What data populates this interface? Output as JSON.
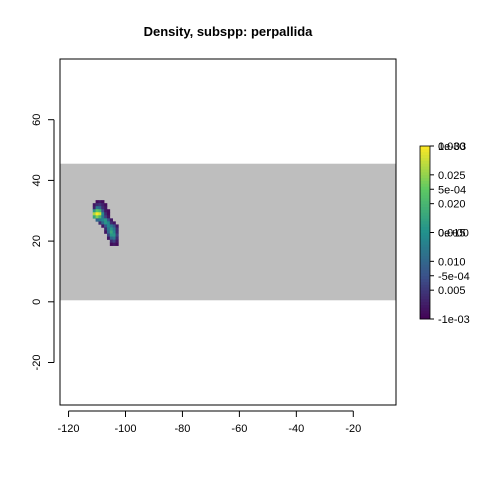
{
  "chart_data": {
    "type": "heatmap",
    "title": "Density, subspp: perpallida",
    "xlabel": "",
    "ylabel": "",
    "xlim": [
      -123,
      -5
    ],
    "ylim": [
      -34,
      80
    ],
    "x_ticks": [
      -120,
      -100,
      -80,
      -60,
      -40,
      -20
    ],
    "y_ticks": [
      -20,
      0,
      20,
      40,
      60
    ],
    "grid": false,
    "background_band": {
      "x": [
        -123,
        -5
      ],
      "y": [
        0.5,
        45.5
      ],
      "color": "#bebebe"
    },
    "colorscale": {
      "type": "viridis",
      "range": [
        0,
        0.03
      ],
      "stops": [
        "#440154",
        "#3b528b",
        "#21908d",
        "#5dc863",
        "#fde725"
      ],
      "ticks": [
        0.005,
        0.01,
        0.015,
        0.02,
        0.025,
        0.03
      ],
      "tick_labels": [
        "0.005",
        "0.010",
        "0.015",
        "0.020",
        "0.025",
        "0.030"
      ],
      "overlay_ticks": [
        -0.001,
        -0.0005,
        0,
        0.0005,
        0.001
      ],
      "overlay_tick_labels": [
        "-1e-03",
        "-5e-04",
        "0e+00",
        "5e-04",
        "1e-03"
      ]
    },
    "cells": [
      {
        "x": -110,
        "y": 33,
        "v": 0.001
      },
      {
        "x": -109,
        "y": 33,
        "v": 0.002
      },
      {
        "x": -108,
        "y": 33,
        "v": 0.001
      },
      {
        "x": -111,
        "y": 32,
        "v": 0.002
      },
      {
        "x": -110,
        "y": 32,
        "v": 0.004
      },
      {
        "x": -109,
        "y": 32,
        "v": 0.005
      },
      {
        "x": -108,
        "y": 32,
        "v": 0.003
      },
      {
        "x": -107,
        "y": 32,
        "v": 0.001
      },
      {
        "x": -111,
        "y": 31,
        "v": 0.003
      },
      {
        "x": -110,
        "y": 31,
        "v": 0.012
      },
      {
        "x": -109,
        "y": 31,
        "v": 0.01
      },
      {
        "x": -108,
        "y": 31,
        "v": 0.004
      },
      {
        "x": -107,
        "y": 31,
        "v": 0.002
      },
      {
        "x": -111,
        "y": 30,
        "v": 0.016
      },
      {
        "x": -110,
        "y": 30,
        "v": 0.022
      },
      {
        "x": -109,
        "y": 30,
        "v": 0.02
      },
      {
        "x": -108,
        "y": 30,
        "v": 0.008
      },
      {
        "x": -107,
        "y": 30,
        "v": 0.002
      },
      {
        "x": -106,
        "y": 30,
        "v": 0.001
      },
      {
        "x": -111,
        "y": 29,
        "v": 0.026
      },
      {
        "x": -110,
        "y": 29,
        "v": 0.03
      },
      {
        "x": -109,
        "y": 29,
        "v": 0.028
      },
      {
        "x": -108,
        "y": 29,
        "v": 0.014
      },
      {
        "x": -107,
        "y": 29,
        "v": 0.004
      },
      {
        "x": -106,
        "y": 29,
        "v": 0.001
      },
      {
        "x": -111,
        "y": 28,
        "v": 0.018
      },
      {
        "x": -110,
        "y": 28,
        "v": 0.024
      },
      {
        "x": -109,
        "y": 28,
        "v": 0.02
      },
      {
        "x": -108,
        "y": 28,
        "v": 0.012
      },
      {
        "x": -107,
        "y": 28,
        "v": 0.006
      },
      {
        "x": -106,
        "y": 28,
        "v": 0.002
      },
      {
        "x": -110,
        "y": 27,
        "v": 0.01
      },
      {
        "x": -109,
        "y": 27,
        "v": 0.012
      },
      {
        "x": -108,
        "y": 27,
        "v": 0.014
      },
      {
        "x": -107,
        "y": 27,
        "v": 0.016
      },
      {
        "x": -106,
        "y": 27,
        "v": 0.008
      },
      {
        "x": -105,
        "y": 27,
        "v": 0.002
      },
      {
        "x": -109,
        "y": 26,
        "v": 0.004
      },
      {
        "x": -108,
        "y": 26,
        "v": 0.01
      },
      {
        "x": -107,
        "y": 26,
        "v": 0.016
      },
      {
        "x": -106,
        "y": 26,
        "v": 0.014
      },
      {
        "x": -105,
        "y": 26,
        "v": 0.004
      },
      {
        "x": -104,
        "y": 26,
        "v": 0.002
      },
      {
        "x": -108,
        "y": 25,
        "v": 0.002
      },
      {
        "x": -107,
        "y": 25,
        "v": 0.008
      },
      {
        "x": -106,
        "y": 25,
        "v": 0.014
      },
      {
        "x": -105,
        "y": 25,
        "v": 0.012
      },
      {
        "x": -104,
        "y": 25,
        "v": 0.008
      },
      {
        "x": -103,
        "y": 25,
        "v": 0.002
      },
      {
        "x": -107,
        "y": 24,
        "v": 0.004
      },
      {
        "x": -106,
        "y": 24,
        "v": 0.012
      },
      {
        "x": -105,
        "y": 24,
        "v": 0.016
      },
      {
        "x": -104,
        "y": 24,
        "v": 0.012
      },
      {
        "x": -103,
        "y": 24,
        "v": 0.004
      },
      {
        "x": -107,
        "y": 23,
        "v": 0.002
      },
      {
        "x": -106,
        "y": 23,
        "v": 0.01
      },
      {
        "x": -105,
        "y": 23,
        "v": 0.018
      },
      {
        "x": -104,
        "y": 23,
        "v": 0.014
      },
      {
        "x": -103,
        "y": 23,
        "v": 0.004
      },
      {
        "x": -106,
        "y": 22,
        "v": 0.006
      },
      {
        "x": -105,
        "y": 22,
        "v": 0.016
      },
      {
        "x": -104,
        "y": 22,
        "v": 0.016
      },
      {
        "x": -103,
        "y": 22,
        "v": 0.006
      },
      {
        "x": -106,
        "y": 21,
        "v": 0.002
      },
      {
        "x": -105,
        "y": 21,
        "v": 0.01
      },
      {
        "x": -104,
        "y": 21,
        "v": 0.012
      },
      {
        "x": -103,
        "y": 21,
        "v": 0.004
      },
      {
        "x": -105,
        "y": 20,
        "v": 0.004
      },
      {
        "x": -104,
        "y": 20,
        "v": 0.006
      },
      {
        "x": -103,
        "y": 20,
        "v": 0.002
      },
      {
        "x": -105,
        "y": 19,
        "v": 0.001
      },
      {
        "x": -104,
        "y": 19,
        "v": 0.002
      },
      {
        "x": -103,
        "y": 19,
        "v": 0.001
      }
    ]
  }
}
